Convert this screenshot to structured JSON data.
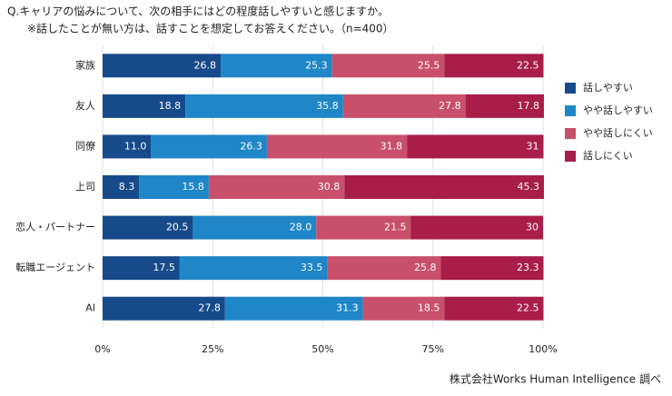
{
  "chart_data": {
    "type": "stacked-bar-horizontal",
    "title": "Q.キャリアの悩みについて、次の相手にはどの程度話しやすいと感じますか。",
    "subtitle": "※話したことが無い方は、話すことを想定してお答えください。（n=400）",
    "source": "株式会社Works Human Intelligence 調べ",
    "categories": [
      "家族",
      "友人",
      "同僚",
      "上司",
      "恋人・パートナー",
      "転職エージェント",
      "AI"
    ],
    "series": [
      {
        "name": "話しやすい",
        "color": "#174a8b",
        "values": [
          26.8,
          18.8,
          11.0,
          8.3,
          20.5,
          17.5,
          27.8
        ],
        "value_labels": [
          "26.8",
          "18.8",
          "11.0",
          "8.3",
          "20.5",
          "17.5",
          "27.8"
        ]
      },
      {
        "name": "やや話しやすい",
        "color": "#1f86c8",
        "values": [
          25.3,
          35.8,
          26.3,
          15.8,
          28.0,
          33.5,
          31.3
        ],
        "value_labels": [
          "25.3",
          "35.8",
          "26.3",
          "15.8",
          "28.0",
          "33.5",
          "31.3"
        ]
      },
      {
        "name": "やや話しにくい",
        "color": "#c9506a",
        "values": [
          25.5,
          27.8,
          31.8,
          30.8,
          21.5,
          25.8,
          18.5
        ],
        "value_labels": [
          "25.5",
          "27.8",
          "31.8",
          "30.8",
          "21.5",
          "25.8",
          "18.5"
        ]
      },
      {
        "name": "話しにくい",
        "color": "#a81d4a",
        "values": [
          22.5,
          17.8,
          31,
          45.3,
          30,
          23.3,
          22.5
        ],
        "value_labels": [
          "22.5",
          "17.8",
          "31",
          "45.3",
          "30",
          "23.3",
          "22.5"
        ]
      }
    ],
    "xlim": [
      0,
      100
    ],
    "xticks": [
      {
        "value": 0,
        "label": "0%"
      },
      {
        "value": 25,
        "label": "25%"
      },
      {
        "value": 50,
        "label": "50%"
      },
      {
        "value": 75,
        "label": "75%"
      },
      {
        "value": 100,
        "label": "100%"
      }
    ],
    "grid": true,
    "legend": "right"
  }
}
